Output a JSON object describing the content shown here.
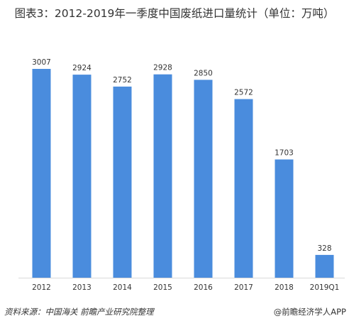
{
  "title": "图表3：2012-2019年一季度中国废纸进口量统计（单位：万吨）",
  "source": "资料来源：中国海关 前瞻产业研究院整理",
  "brand": {
    "icon": "at-sign-icon",
    "text": "@前瞻经济学人APP"
  },
  "colors": {
    "bar": "#4a8cdd"
  },
  "chart_data": {
    "type": "bar",
    "title": "图表3：2012-2019年一季度中国废纸进口量统计（单位：万吨）",
    "xlabel": "",
    "ylabel": "",
    "categories": [
      "2012",
      "2013",
      "2014",
      "2015",
      "2016",
      "2017",
      "2018",
      "2019Q1"
    ],
    "values": [
      3007,
      2924,
      2752,
      2928,
      2850,
      2572,
      1703,
      328
    ],
    "value_labels": [
      "3007",
      "2924",
      "2752",
      "2928",
      "2850",
      "2572",
      "1703",
      "328"
    ],
    "ylim": [
      0,
      3007
    ],
    "grid": false,
    "legend": "none"
  }
}
